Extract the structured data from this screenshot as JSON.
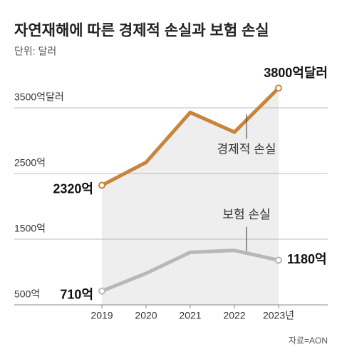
{
  "chart_data": {
    "type": "line",
    "title": "자연재해에 따른 경제적 손실과 보험 손실",
    "subtitle": "단위: 달러",
    "source": "자료=AON",
    "categories": [
      "2019",
      "2020",
      "2021",
      "2022",
      "2023년"
    ],
    "series": [
      {
        "name": "경제적 손실",
        "color": "#c8843a",
        "values": [
          2320,
          2670,
          3430,
          3130,
          3800
        ],
        "value_labels": [
          "2320억",
          null,
          null,
          null,
          "3800억달러"
        ]
      },
      {
        "name": "보험 손실",
        "color": "#b8b8b8",
        "values": [
          710,
          980,
          1300,
          1330,
          1180
        ],
        "value_labels": [
          "710억",
          null,
          null,
          null,
          "1180억"
        ]
      }
    ],
    "ylim": [
      500,
      4000
    ],
    "yticks": [
      {
        "value": 500,
        "label": "500억"
      },
      {
        "value": 1500,
        "label": "1500억"
      },
      {
        "value": 2500,
        "label": "2500억"
      },
      {
        "value": 3500,
        "label": "3500억달러"
      }
    ],
    "grid": true,
    "area_color": "#eeeeee"
  }
}
